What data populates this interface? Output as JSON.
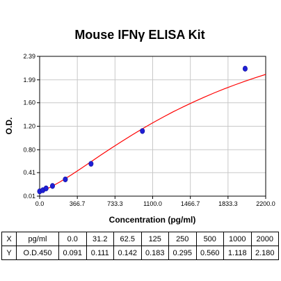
{
  "chart_data": {
    "type": "scatter",
    "title": "Mouse IFNγ ELISA Kit",
    "xlabel": "Concentration (pg/ml)",
    "ylabel": "O.D.",
    "xlim": [
      0,
      2200
    ],
    "ylim": [
      0.01,
      2.39
    ],
    "xticks": [
      "0.0",
      "366.7",
      "733.3",
      "1100.0",
      "1466.7",
      "1833.3",
      "2200.0"
    ],
    "yticks": [
      "0.01",
      "0.41",
      "0.80",
      "1.20",
      "1.60",
      "1.99",
      "2.39"
    ],
    "grid": true,
    "points": {
      "x": [
        0,
        31.2,
        62.5,
        125,
        250,
        500,
        1000,
        2000
      ],
      "y": [
        0.091,
        0.111,
        0.142,
        0.183,
        0.295,
        0.56,
        1.118,
        2.18
      ]
    },
    "curve": {
      "type": "four-parameter logistic fit",
      "color": "#ff0000",
      "x": [
        0,
        100,
        200,
        300,
        400,
        500,
        600,
        700,
        800,
        900,
        1000,
        1100,
        1200,
        1300,
        1400,
        1500,
        1600,
        1700,
        1800,
        1900,
        2000,
        2100,
        2200
      ],
      "y": [
        0.09,
        0.158,
        0.254,
        0.363,
        0.478,
        0.596,
        0.714,
        0.83,
        0.943,
        1.052,
        1.157,
        1.258,
        1.354,
        1.446,
        1.533,
        1.616,
        1.694,
        1.768,
        1.838,
        1.904,
        1.967,
        2.026,
        2.082
      ]
    },
    "marker_color": "#1f1fd6",
    "table": {
      "row_headers": [
        "X",
        "Y"
      ],
      "row_labels": [
        "pg/ml",
        "O.D.450"
      ],
      "x_values": [
        "0.0",
        "31.2",
        "62.5",
        "125",
        "250",
        "500",
        "1000",
        "2000"
      ],
      "y_values": [
        "0.091",
        "0.111",
        "0.142",
        "0.183",
        "0.295",
        "0.560",
        "1.118",
        "2.180"
      ]
    }
  }
}
